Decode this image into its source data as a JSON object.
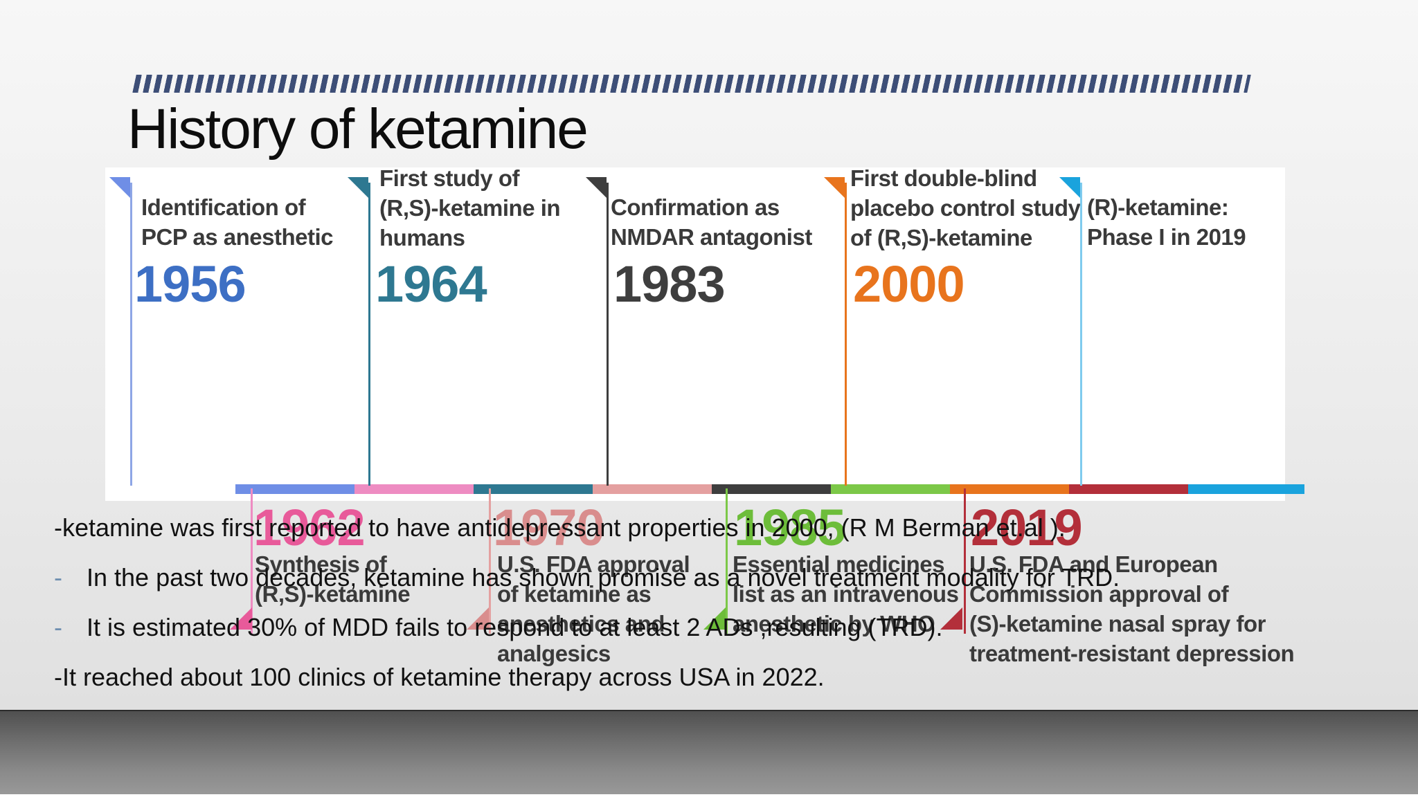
{
  "slide": {
    "title": "History of ketamine"
  },
  "timeline": {
    "top_events": [
      {
        "line1": "Identification of",
        "line2": "PCP as anesthetic",
        "line3": "",
        "year": "1956",
        "color": "#4a86d1"
      },
      {
        "line1": "First study of",
        "line2": "(R,S)-ketamine in",
        "line3": "humans",
        "year": "1964",
        "color": "#2e7891"
      },
      {
        "line1": "Confirmation as",
        "line2": "NMDAR antagonist",
        "line3": "",
        "year": "1983",
        "color": "#3e3e3e"
      },
      {
        "line1": "First double-blind",
        "line2": "placebo control study",
        "line3": "of (R,S)-ketamine",
        "year": "2000",
        "color": "#e8741d"
      },
      {
        "line1": "(R)-ketamine:",
        "line2": "Phase I in 2019",
        "line3": "",
        "year": "",
        "color": "#1aa3dd"
      }
    ],
    "bottom_events": [
      {
        "year": "1962",
        "line1": "Synthesis of",
        "line2": "(R,S)-ketamine",
        "line3": "",
        "line4": "",
        "color": "#e85a9a"
      },
      {
        "year": "1970",
        "line1": "U.S. FDA approval",
        "line2": "of ketamine as",
        "line3": "anesthetics and",
        "line4": "analgesics",
        "color": "#d98d8d"
      },
      {
        "year": "1985",
        "line1": "Essential medicines",
        "line2": "list as an intravenous",
        "line3": "anesthetic by WHO",
        "line4": "",
        "color": "#6dbd3a"
      },
      {
        "year": "2019",
        "line1": "U.S. FDA and European",
        "line2": "Commission approval of",
        "line3": "(S)-ketamine nasal spray for",
        "line4": "treatment-resistant depression",
        "color": "#b32f3a"
      }
    ]
  },
  "bullets": [
    {
      "marker": "- ",
      "text": "ketamine was first reported to have antidepressant properties in 2000, (R M Berman et.al )."
    },
    {
      "marker": "-",
      "text": "In the past two decades, ketamine has shown promise as a novel treatment modality for TRD."
    },
    {
      "marker": "-",
      "text": "It is estimated 30% of MDD fails to respond to at least 2 ADs ,resulting (TRD)."
    },
    {
      "marker": "- ",
      "text": "It reached about 100 clinics of ketamine therapy across USA in 2022."
    }
  ]
}
